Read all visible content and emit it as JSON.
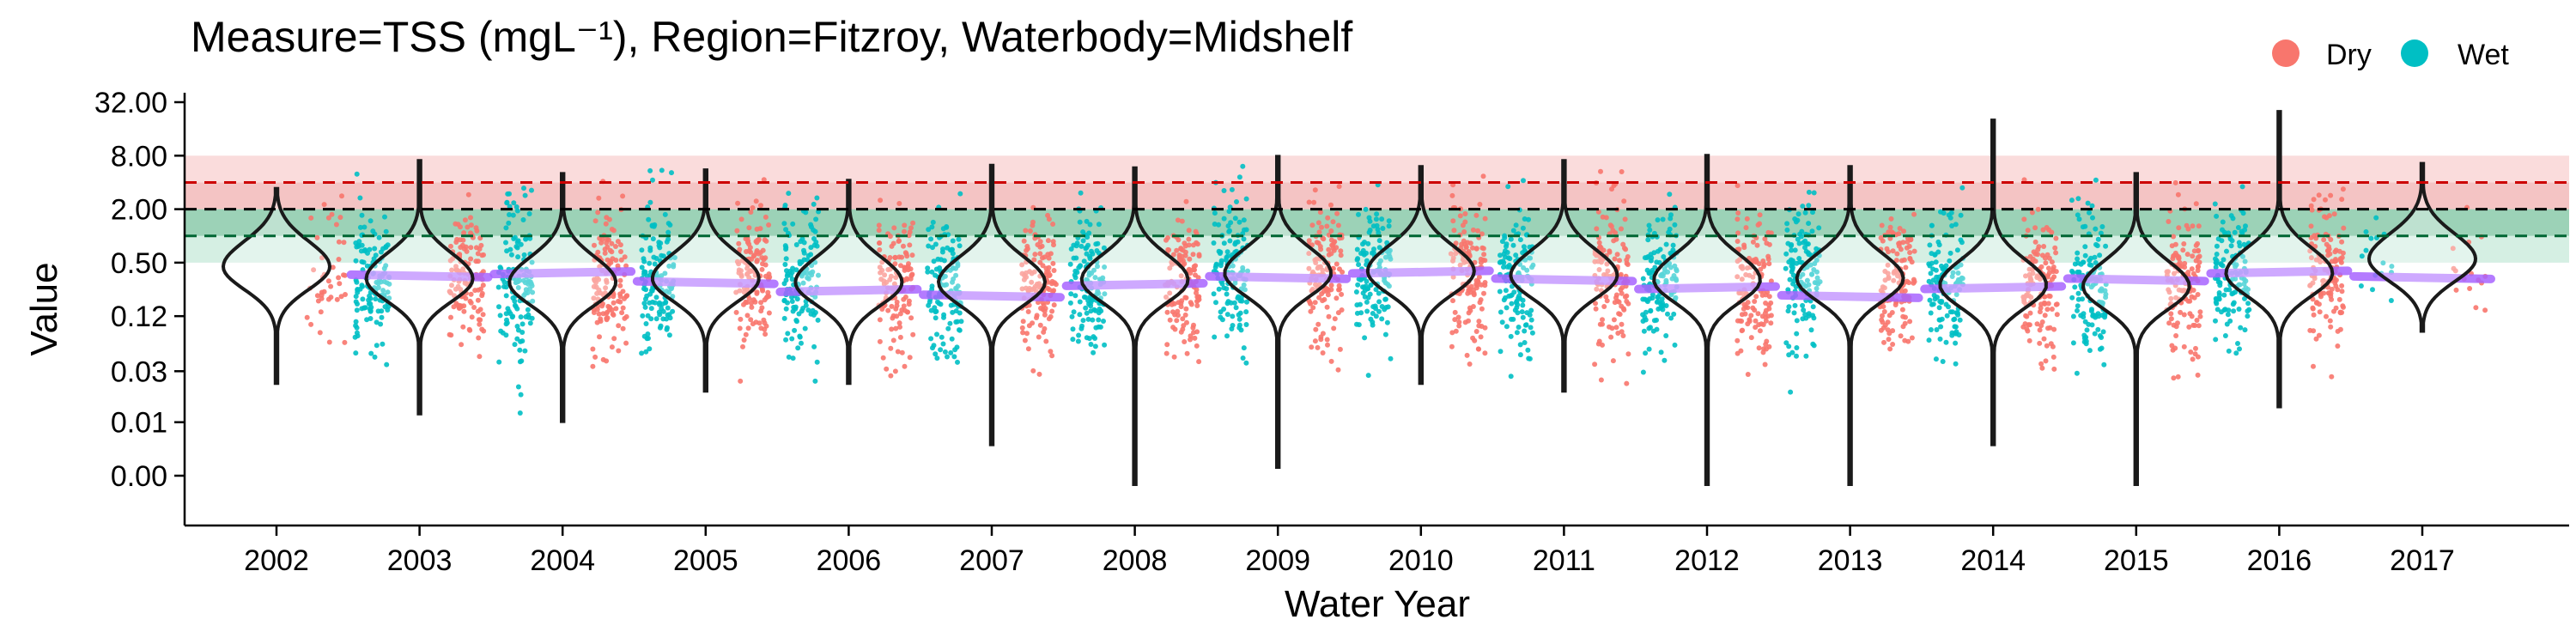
{
  "chart_data": {
    "type": "violin",
    "title": "Measure=TSS (mgL⁻¹), Region=Fitzroy, Waterbody=Midshelf",
    "xlabel": "Water Year",
    "ylabel": "Value",
    "y_scale": "log2",
    "y_ticks": [
      {
        "value": 0.002,
        "label": "0.00"
      },
      {
        "value": 0.008,
        "label": "0.01"
      },
      {
        "value": 0.03,
        "label": "0.03"
      },
      {
        "value": 0.125,
        "label": "0.12"
      },
      {
        "value": 0.5,
        "label": "0.50"
      },
      {
        "value": 2,
        "label": "2.00"
      },
      {
        "value": 8,
        "label": "8.00"
      },
      {
        "value": 32,
        "label": "32.00"
      }
    ],
    "ylim": [
      0.0012,
      40
    ],
    "categories": [
      "2002",
      "2003",
      "2004",
      "2005",
      "2006",
      "2007",
      "2008",
      "2009",
      "2010",
      "2011",
      "2012",
      "2013",
      "2014",
      "2015",
      "2016",
      "2017"
    ],
    "legend": {
      "position": "top-right",
      "entries": [
        {
          "name": "Dry",
          "color": "#F8766D"
        },
        {
          "name": "Wet",
          "color": "#00BFC4"
        }
      ]
    },
    "reference_lines": [
      {
        "value": 4.0,
        "color": "#cc0000",
        "style": "dashed"
      },
      {
        "value": 2.0,
        "color": "#000000",
        "style": "dashed"
      },
      {
        "value": 1.0,
        "color": "#006633",
        "style": "dashed"
      }
    ],
    "bands": [
      {
        "from": 0.5,
        "to": 1.0,
        "color": "#d5efe3"
      },
      {
        "from": 1.0,
        "to": 2.0,
        "color": "#9cd2b7"
      },
      {
        "from": 2.0,
        "to": 4.0,
        "color": "#f4c4c4"
      },
      {
        "from": 4.0,
        "to": 8.0,
        "color": "#fadcdc"
      }
    ],
    "violins": [
      {
        "year": "2002",
        "min": 0.022,
        "max": 3.4,
        "median": 0.45
      },
      {
        "year": "2003",
        "min": 0.01,
        "max": 7.0,
        "median": 0.33
      },
      {
        "year": "2004",
        "min": 0.0082,
        "max": 5.0,
        "median": 0.3
      },
      {
        "year": "2005",
        "min": 0.018,
        "max": 5.5,
        "median": 0.33
      },
      {
        "year": "2006",
        "min": 0.022,
        "max": 4.2,
        "median": 0.3
      },
      {
        "year": "2007",
        "min": 0.0045,
        "max": 6.2,
        "median": 0.3
      },
      {
        "year": "2008",
        "min": 0.0016,
        "max": 5.8,
        "median": 0.32
      },
      {
        "year": "2009",
        "min": 0.0025,
        "max": 7.8,
        "median": 0.38
      },
      {
        "year": "2010",
        "min": 0.022,
        "max": 6.0,
        "median": 0.4
      },
      {
        "year": "2011",
        "min": 0.018,
        "max": 7.0,
        "median": 0.36
      },
      {
        "year": "2012",
        "min": 0.0016,
        "max": 8.0,
        "median": 0.32
      },
      {
        "year": "2013",
        "min": 0.0016,
        "max": 6.0,
        "median": 0.33
      },
      {
        "year": "2014",
        "min": 0.0045,
        "max": 20.0,
        "median": 0.28
      },
      {
        "year": "2015",
        "min": 0.0016,
        "max": 5.0,
        "median": 0.27
      },
      {
        "year": "2016",
        "min": 0.012,
        "max": 25.0,
        "median": 0.38
      },
      {
        "year": "2017",
        "min": 0.085,
        "max": 6.5,
        "median": 0.55
      }
    ],
    "trend_median": 0.33
  }
}
